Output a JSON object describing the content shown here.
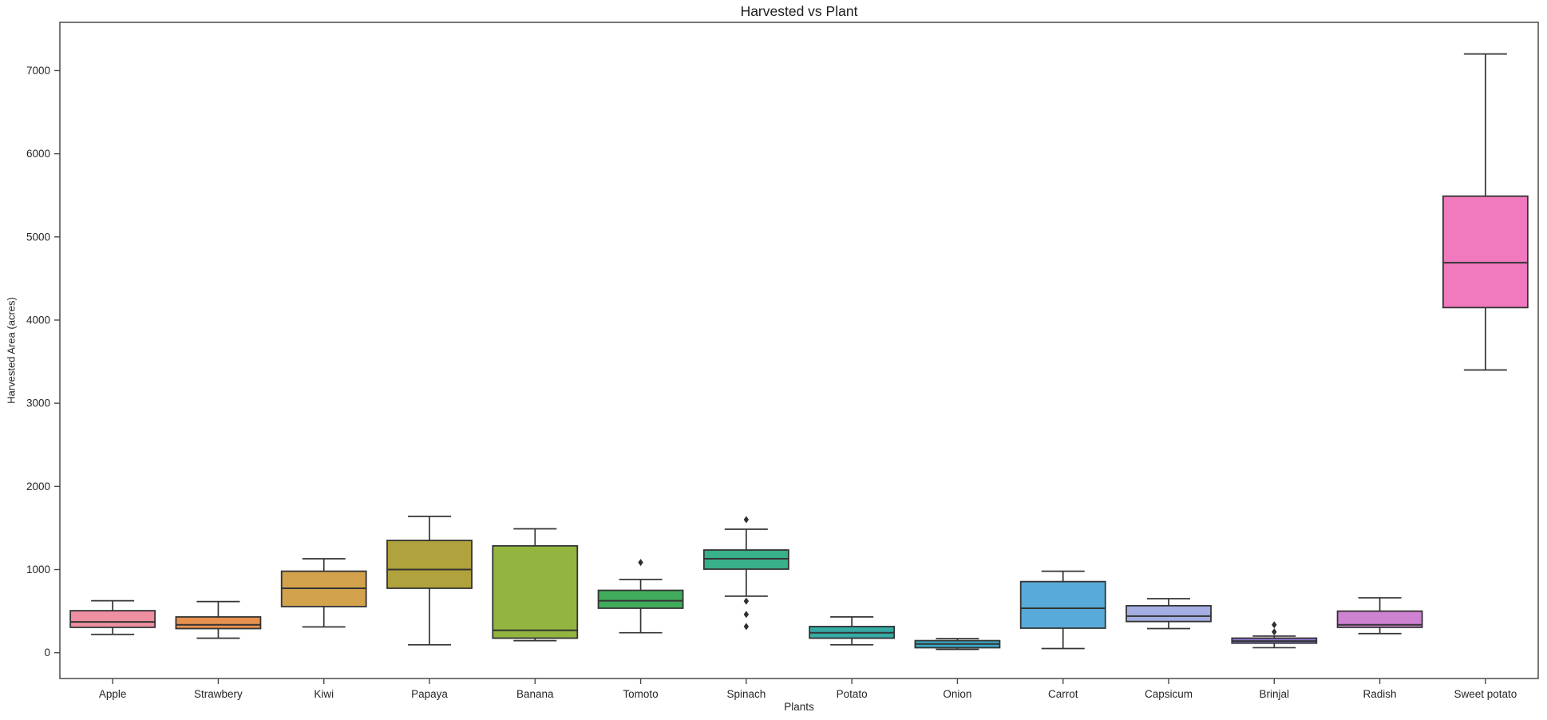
{
  "figure": {
    "title": "Harvested vs Plant",
    "xlabel": "Plants",
    "ylabel": "Harvested Area (acres)"
  },
  "chart_data": {
    "type": "box",
    "title": "Harvested vs Plant",
    "xlabel": "Plants",
    "ylabel": "Harvested Area (acres)",
    "ylim": [
      -310,
      7580
    ],
    "yticks": [
      0,
      1000,
      2000,
      3000,
      4000,
      5000,
      6000,
      7000
    ],
    "grid": false,
    "legend": false,
    "line_color": "#343434",
    "categories": [
      "Apple",
      "Strawbery",
      "Kiwi",
      "Papaya",
      "Banana",
      "Tomoto",
      "Spinach",
      "Potato",
      "Onion",
      "Carrot",
      "Capsicum",
      "Brinjal",
      "Radish",
      "Sweet potato"
    ],
    "series": [
      {
        "name": "Apple",
        "color": "#ee8fa2",
        "whislo": 220,
        "q1": 305,
        "med": 370,
        "q3": 505,
        "whishi": 625,
        "fliers": []
      },
      {
        "name": "Strawbery",
        "color": "#e8914e",
        "whislo": 175,
        "q1": 290,
        "med": 335,
        "q3": 430,
        "whishi": 615,
        "fliers": []
      },
      {
        "name": "Kiwi",
        "color": "#d2a24c",
        "whislo": 310,
        "q1": 555,
        "med": 775,
        "q3": 980,
        "whishi": 1130,
        "fliers": []
      },
      {
        "name": "Papaya",
        "color": "#b0a23d",
        "whislo": 95,
        "q1": 775,
        "med": 1000,
        "q3": 1350,
        "whishi": 1640,
        "fliers": []
      },
      {
        "name": "Banana",
        "color": "#93b43f",
        "whislo": 145,
        "q1": 175,
        "med": 270,
        "q3": 1285,
        "whishi": 1490,
        "fliers": []
      },
      {
        "name": "Tomoto",
        "color": "#41ab5c",
        "whislo": 240,
        "q1": 535,
        "med": 625,
        "q3": 750,
        "whishi": 880,
        "fliers": [
          1085
        ]
      },
      {
        "name": "Spinach",
        "color": "#38b089",
        "whislo": 680,
        "q1": 1005,
        "med": 1130,
        "q3": 1235,
        "whishi": 1485,
        "fliers": [
          1600,
          620,
          460,
          315
        ]
      },
      {
        "name": "Potato",
        "color": "#36aaa4",
        "whislo": 95,
        "q1": 175,
        "med": 240,
        "q3": 315,
        "whishi": 430,
        "fliers": []
      },
      {
        "name": "Onion",
        "color": "#3aa8c2",
        "whislo": 40,
        "q1": 60,
        "med": 105,
        "q3": 145,
        "whishi": 170,
        "fliers": []
      },
      {
        "name": "Carrot",
        "color": "#58aad8",
        "whislo": 50,
        "q1": 295,
        "med": 535,
        "q3": 855,
        "whishi": 980,
        "fliers": []
      },
      {
        "name": "Capsicum",
        "color": "#a5aee2",
        "whislo": 290,
        "q1": 375,
        "med": 440,
        "q3": 565,
        "whishi": 650,
        "fliers": []
      },
      {
        "name": "Brinjal",
        "color": "#8f78d4",
        "whislo": 60,
        "q1": 115,
        "med": 140,
        "q3": 175,
        "whishi": 200,
        "fliers": [
          250,
          335
        ]
      },
      {
        "name": "Radish",
        "color": "#d082d2",
        "whislo": 230,
        "q1": 305,
        "med": 335,
        "q3": 500,
        "whishi": 660,
        "fliers": []
      },
      {
        "name": "Sweet potato",
        "color": "#f07abd",
        "whislo": 3400,
        "q1": 4150,
        "med": 4690,
        "q3": 5490,
        "whishi": 7200,
        "fliers": []
      }
    ]
  }
}
